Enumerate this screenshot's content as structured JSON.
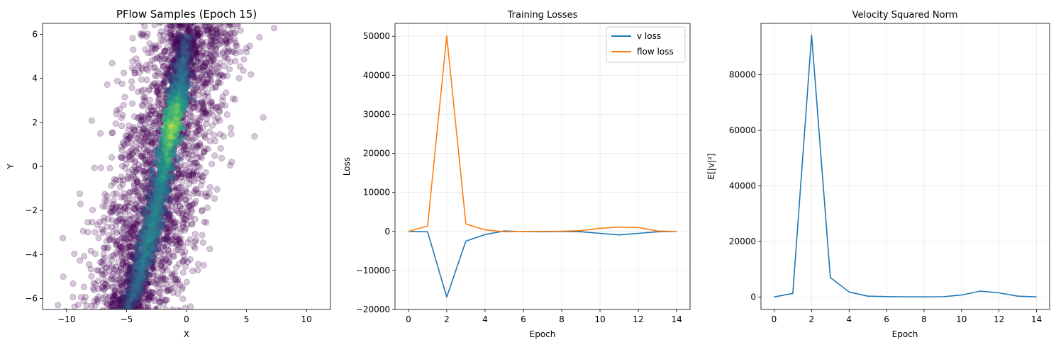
{
  "chart_data": [
    {
      "type": "scatter",
      "title": "PFlow Samples (Epoch 15)",
      "xlabel": "X",
      "ylabel": "Y",
      "xlim": [
        -12,
        12
      ],
      "ylim": [
        -6.5,
        6.5
      ],
      "xticks": [
        -10,
        -5,
        0,
        5,
        10
      ],
      "yticks": [
        -6,
        -4,
        -2,
        0,
        2,
        4,
        6
      ],
      "grid": false,
      "colormap": "viridis",
      "point_color": "#440154",
      "density_ridge": [
        {
          "x": -5.0,
          "y": -6.5,
          "density": 0.35
        },
        {
          "x": -4.0,
          "y": -5.0,
          "density": 0.45
        },
        {
          "x": -3.0,
          "y": -3.0,
          "density": 0.6
        },
        {
          "x": -2.2,
          "y": -1.0,
          "density": 0.55
        },
        {
          "x": -1.5,
          "y": 1.0,
          "density": 0.8
        },
        {
          "x": -1.2,
          "y": 2.0,
          "density": 1.0
        },
        {
          "x": -0.8,
          "y": 3.0,
          "density": 0.85
        },
        {
          "x": -0.5,
          "y": 4.0,
          "density": 0.5
        },
        {
          "x": 0.0,
          "y": 6.0,
          "density": 0.3
        }
      ]
    },
    {
      "type": "line",
      "title": "Training Losses",
      "xlabel": "Epoch",
      "ylabel": "Loss",
      "xlim": [
        -0.7,
        14.7
      ],
      "ylim": [
        -20000,
        53300
      ],
      "xticks": [
        0,
        2,
        4,
        6,
        8,
        10,
        12,
        14
      ],
      "yticks": [
        -20000,
        -10000,
        0,
        10000,
        20000,
        30000,
        40000,
        50000
      ],
      "grid": true,
      "legend": "top-right",
      "x": [
        0,
        1,
        2,
        3,
        4,
        5,
        6,
        7,
        8,
        9,
        10,
        11,
        12,
        13,
        14
      ],
      "series": [
        {
          "name": "v loss",
          "color": "#1f77b4",
          "values": [
            0,
            -100,
            -16800,
            -2500,
            -800,
            100,
            -50,
            -100,
            -50,
            -100,
            -500,
            -900,
            -500,
            -100,
            0
          ]
        },
        {
          "name": "flow loss",
          "color": "#ff7f0e",
          "values": [
            0,
            1400,
            50100,
            1900,
            400,
            -100,
            0,
            0,
            50,
            200,
            800,
            1100,
            1000,
            100,
            0
          ]
        }
      ]
    },
    {
      "type": "line",
      "title": "Velocity Squared Norm",
      "xlabel": "Epoch",
      "ylabel": "E[|v|²]",
      "xlim": [
        -0.7,
        14.7
      ],
      "ylim": [
        -4500,
        98500
      ],
      "xticks": [
        0,
        2,
        4,
        6,
        8,
        10,
        12,
        14
      ],
      "yticks": [
        0,
        20000,
        40000,
        60000,
        80000
      ],
      "grid": true,
      "x": [
        0,
        1,
        2,
        3,
        4,
        5,
        6,
        7,
        8,
        9,
        10,
        11,
        12,
        13,
        14
      ],
      "series": [
        {
          "color": "#1f77b4",
          "values": [
            0,
            1300,
            94300,
            7000,
            1800,
            300,
            150,
            50,
            50,
            100,
            700,
            2100,
            1500,
            300,
            50
          ]
        }
      ]
    }
  ]
}
